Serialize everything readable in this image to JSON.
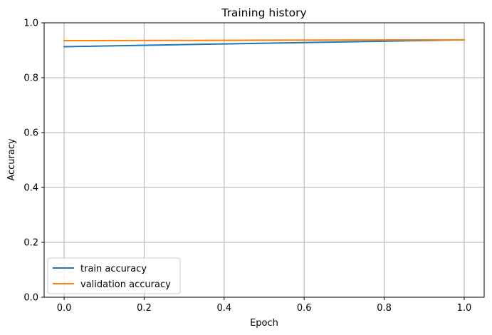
{
  "chart_data": {
    "type": "line",
    "title": "Training history",
    "xlabel": "Epoch",
    "ylabel": "Accuracy",
    "x": [
      0,
      1
    ],
    "xlim": [
      -0.05,
      1.05
    ],
    "ylim": [
      0,
      1
    ],
    "xticks": [
      0.0,
      0.2,
      0.4,
      0.6,
      0.8,
      1.0
    ],
    "xtick_labels": [
      "0.0",
      "0.2",
      "0.4",
      "0.6",
      "0.8",
      "1.0"
    ],
    "yticks": [
      0.0,
      0.2,
      0.4,
      0.6,
      0.8,
      1.0
    ],
    "ytick_labels": [
      "0.0",
      "0.2",
      "0.4",
      "0.6",
      "0.8",
      "1.0"
    ],
    "grid": true,
    "legend_position": "lower-left",
    "series": [
      {
        "name": "train accuracy",
        "color": "#1f77b4",
        "values": [
          0.913,
          0.938
        ]
      },
      {
        "name": "validation accuracy",
        "color": "#ff7f0e",
        "values": [
          0.935,
          0.938
        ]
      }
    ]
  }
}
